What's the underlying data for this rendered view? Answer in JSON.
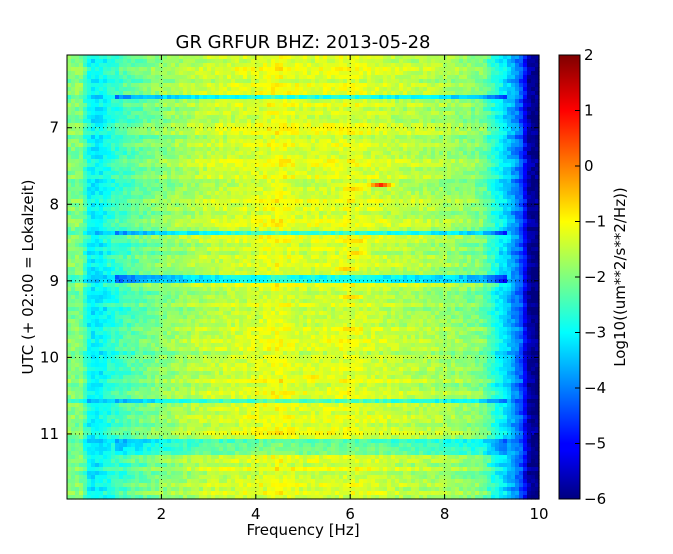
{
  "chart_data": {
    "type": "heatmap",
    "title": "GR GRFUR BHZ: 2013-05-28",
    "xlabel": "Frequency [Hz]",
    "ylabel": "UTC (+ 02:00 = Lokalzeit)",
    "colorbar_label": "Log10((um**2/s**2/Hz))",
    "xlim": [
      0,
      10
    ],
    "ylim": [
      6.05,
      11.85
    ],
    "y_inverted": true,
    "clim": [
      -6,
      2
    ],
    "colormap": "jet",
    "grid": true,
    "x_ticks": [
      2,
      4,
      6,
      8,
      10
    ],
    "x_tick_labels": [
      "2",
      "4",
      "6",
      "8",
      "10"
    ],
    "y_ticks": [
      7,
      8,
      9,
      10,
      11
    ],
    "y_tick_labels": [
      "7",
      "8",
      "9",
      "10",
      "11"
    ],
    "colorbar_ticks": [
      2,
      1,
      0,
      -1,
      -2,
      -3,
      -4,
      -5,
      -6
    ],
    "colorbar_tick_labels": [
      "2",
      "1",
      "0",
      "−1",
      "−2",
      "−3",
      "−4",
      "−5",
      "−6"
    ],
    "frequency_profile": {
      "frequency_hz": [
        0.0,
        0.3,
        0.5,
        0.7,
        1.0,
        1.5,
        2.0,
        3.0,
        4.0,
        4.5,
        5.0,
        6.0,
        7.0,
        8.0,
        8.8,
        9.0,
        9.3,
        9.6,
        9.8,
        10.0
      ],
      "log10_psd": [
        -2.0,
        -2.0,
        -3.1,
        -3.0,
        -2.6,
        -2.2,
        -1.9,
        -1.5,
        -1.3,
        -1.1,
        -1.35,
        -1.25,
        -1.5,
        -1.7,
        -2.0,
        -2.6,
        -3.3,
        -4.2,
        -5.8,
        -6.0
      ]
    },
    "time_bands": [
      {
        "utc_start": 6.55,
        "utc_end": 6.62,
        "log10_psd_offset": -1.6
      },
      {
        "utc_start": 8.35,
        "utc_end": 8.42,
        "log10_psd_offset": -1.4
      },
      {
        "utc_start": 8.95,
        "utc_end": 9.02,
        "log10_psd_offset": -1.5
      },
      {
        "utc_start": 10.55,
        "utc_end": 10.62,
        "log10_psd_offset": -0.9
      },
      {
        "utc_start": 11.05,
        "utc_end": 11.3,
        "log10_psd_offset": -0.9
      }
    ],
    "hotspots": [
      {
        "utc": 7.75,
        "frequency_hz": 6.65,
        "log10_psd": 0.8
      },
      {
        "utc": 7.78,
        "frequency_hz": 6.1,
        "log10_psd": -0.2
      },
      {
        "utc": 8.5,
        "frequency_hz": 6.1,
        "log10_psd": -0.4
      },
      {
        "utc": 8.65,
        "frequency_hz": 6.1,
        "log10_psd": -0.4
      },
      {
        "utc": 8.85,
        "frequency_hz": 5.9,
        "log10_psd": -0.5
      },
      {
        "utc": 9.2,
        "frequency_hz": 6.0,
        "log10_psd": -0.4
      },
      {
        "utc": 9.65,
        "frequency_hz": 6.0,
        "log10_psd": -0.5
      },
      {
        "utc": 10.25,
        "frequency_hz": 5.2,
        "log10_psd": -0.7
      }
    ]
  }
}
